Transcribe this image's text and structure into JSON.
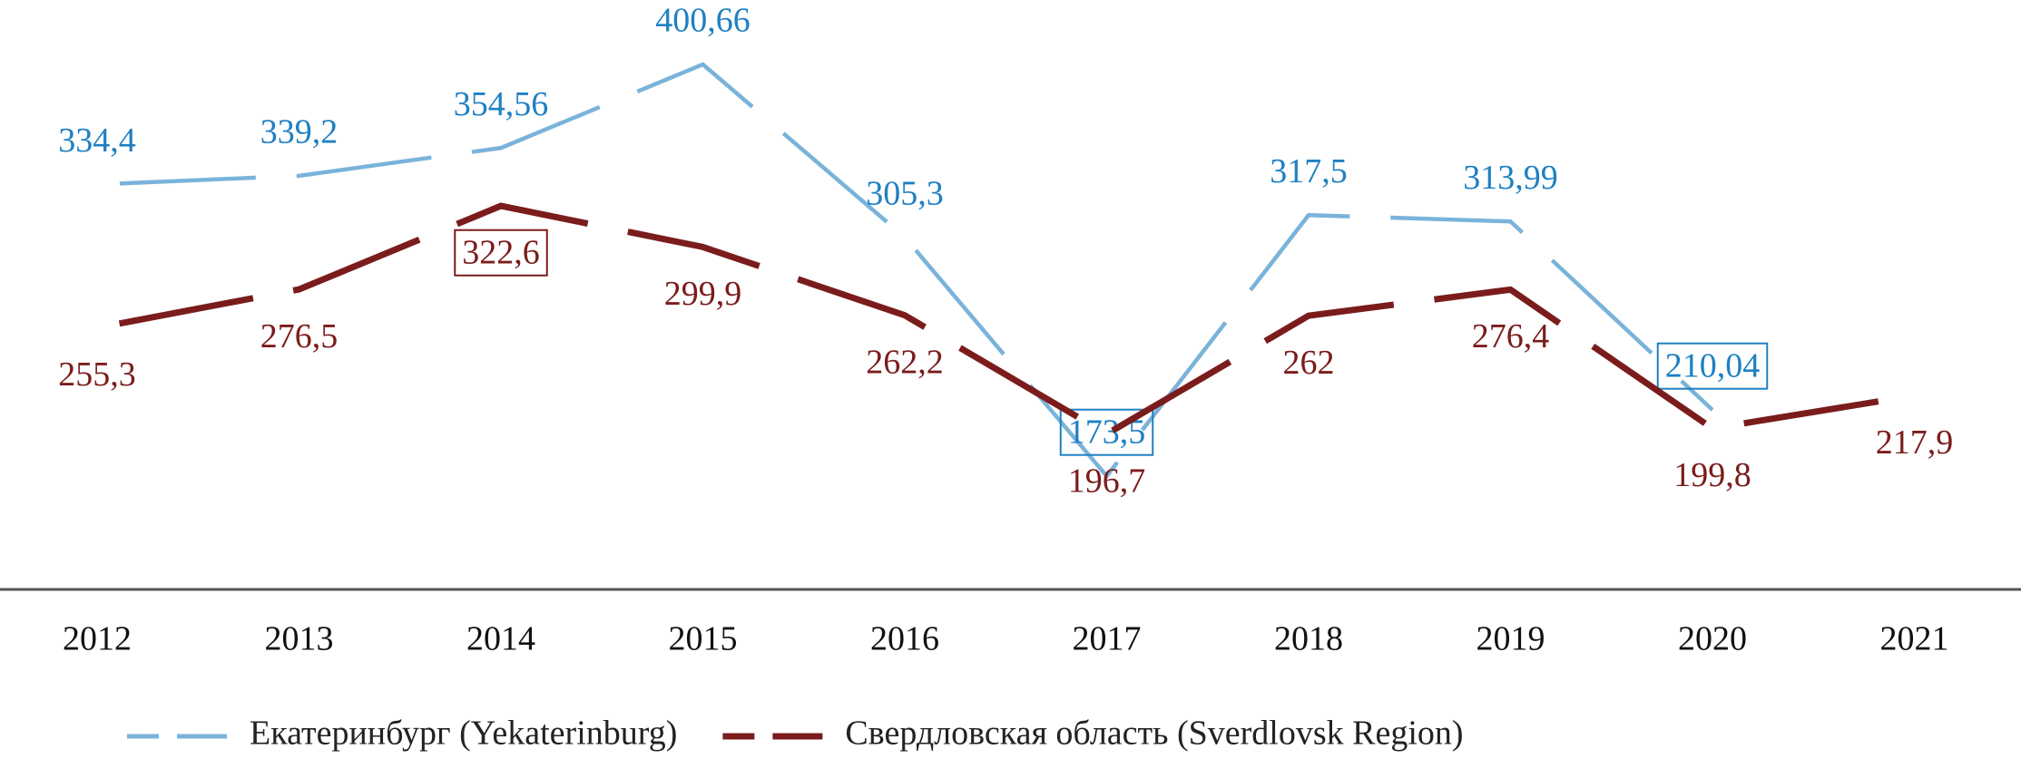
{
  "chart_data": {
    "type": "line",
    "categories": [
      "2012",
      "2013",
      "2014",
      "2015",
      "2016",
      "2017",
      "2018",
      "2019",
      "2020",
      "2021"
    ],
    "series": [
      {
        "name": "Екатеринбург (Yekaterinburg)",
        "color": "#7ab3da",
        "label_color": "#1f80c2",
        "label_side": "above",
        "boxed": [
          5,
          8
        ],
        "values": [
          334.4,
          339.2,
          354.56,
          400.66,
          305.3,
          173.5,
          317.5,
          313.99,
          210.04,
          null
        ],
        "value_labels": [
          "334,4",
          "339,2",
          "354,56",
          "400,66",
          "305,3",
          "173,5",
          "317,5",
          "313,99",
          "210,04",
          null
        ]
      },
      {
        "name": "Свердловская область (Sverdlovsk Region)",
        "color": "#7b1c1c",
        "label_color": "#7b1c1c",
        "label_side": "below",
        "boxed": [
          2
        ],
        "values": [
          255.3,
          276.5,
          322.6,
          299.9,
          262.2,
          196.7,
          262,
          276.4,
          199.8,
          217.9
        ],
        "value_labels": [
          "255,3",
          "276,5",
          "322,6",
          "299,9",
          "262,2",
          "196,7",
          "262",
          "276,4",
          "199,8",
          "217,9"
        ]
      }
    ]
  }
}
